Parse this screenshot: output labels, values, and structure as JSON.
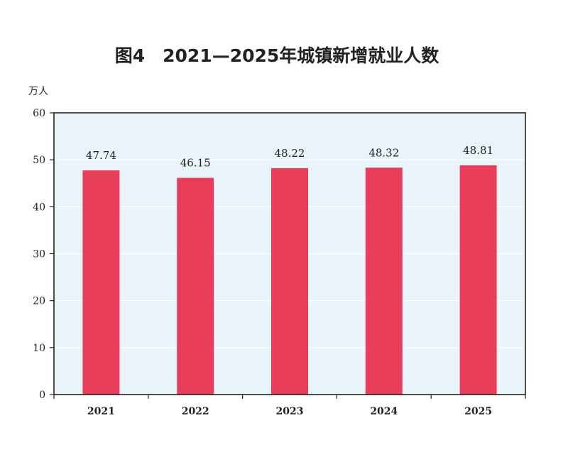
{
  "chart_data": {
    "type": "bar",
    "title": "图4　2021—2025年城镇新增就业人数",
    "ylabel": "万人",
    "xlabel": "",
    "categories": [
      "2021",
      "2022",
      "2023",
      "2024",
      "2025"
    ],
    "values": [
      47.74,
      46.15,
      48.22,
      48.32,
      48.81
    ],
    "value_labels": [
      "47.74",
      "46.15",
      "48.22",
      "48.32",
      "48.81"
    ],
    "yticks": [
      "0",
      "10",
      "20",
      "30",
      "40",
      "50",
      "60"
    ],
    "ylim": [
      0,
      60
    ],
    "grid": true,
    "colors": {
      "bar": "#e83e59",
      "plot_bg": "#e8f4fa",
      "grid": "#ffffff",
      "frame": "#222222"
    }
  }
}
